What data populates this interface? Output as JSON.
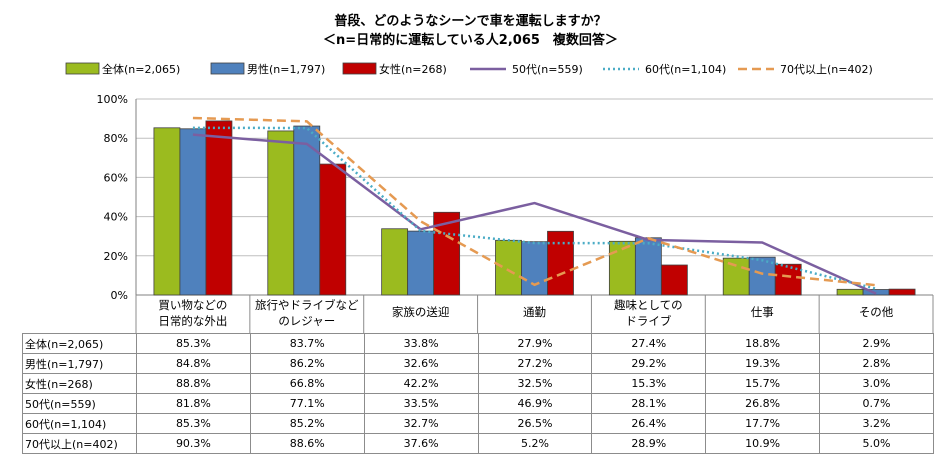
{
  "title": "普段、どのようなシーンで車を運転しますか？",
  "subtitle": "＜n=日常的に運転している人2,065　複数回答＞",
  "chart_data": {
    "type": "bar",
    "title": "普段、どのようなシーンで車を運転しますか？",
    "subtitle": "＜n=日常的に運転している人2,065　複数回答＞",
    "categories": [
      [
        "買い物などの",
        "日常的な外出"
      ],
      [
        "旅行やドライブなど",
        "のレジャー"
      ],
      [
        "家族の送迎"
      ],
      [
        "通勤"
      ],
      [
        "趣味としての",
        "ドライブ"
      ],
      [
        "仕事"
      ],
      [
        "その他"
      ]
    ],
    "ylim": [
      0,
      100
    ],
    "yticks": [
      "0%",
      "20%",
      "40%",
      "60%",
      "80%",
      "100%"
    ],
    "gridlines": true,
    "legend_position": "top",
    "bar_series": [
      {
        "name": "全体(n=2,065)",
        "color": "#9bbb1f",
        "values": [
          85.3,
          83.7,
          33.8,
          27.9,
          27.4,
          18.8,
          2.9
        ],
        "labels": [
          "85.3%",
          "83.7%",
          "33.8%",
          "27.9%",
          "27.4%",
          "18.8%",
          "2.9%"
        ]
      },
      {
        "name": "男性(n=1,797)",
        "color": "#4f81bd",
        "values": [
          84.8,
          86.2,
          32.6,
          27.2,
          29.2,
          19.3,
          2.8
        ],
        "labels": [
          "84.8%",
          "86.2%",
          "32.6%",
          "27.2%",
          "29.2%",
          "19.3%",
          "2.8%"
        ]
      },
      {
        "name": "女性(n=268)",
        "color": "#c00000",
        "values": [
          88.8,
          66.8,
          42.2,
          32.5,
          15.3,
          15.7,
          3.0
        ],
        "labels": [
          "88.8%",
          "66.8%",
          "42.2%",
          "32.5%",
          "15.3%",
          "15.7%",
          "3.0%"
        ]
      }
    ],
    "line_series": [
      {
        "name": "50代(n=559)",
        "color": "#7b5fa0",
        "style": "solid",
        "values": [
          81.8,
          77.1,
          33.5,
          46.9,
          28.1,
          26.8,
          0.7
        ],
        "labels": [
          "81.8%",
          "77.1%",
          "33.5%",
          "46.9%",
          "28.1%",
          "26.8%",
          "0.7%"
        ]
      },
      {
        "name": "60代(n=1,104)",
        "color": "#4bacc6",
        "style": "dotted",
        "values": [
          85.3,
          85.2,
          32.7,
          26.5,
          26.4,
          17.7,
          3.2
        ],
        "labels": [
          "85.3%",
          "85.2%",
          "32.7%",
          "26.5%",
          "26.4%",
          "17.7%",
          "3.2%"
        ]
      },
      {
        "name": "70代以上(n=402)",
        "color": "#e59a52",
        "style": "dashed",
        "values": [
          90.3,
          88.6,
          37.6,
          5.2,
          28.9,
          10.9,
          5.0
        ],
        "labels": [
          "90.3%",
          "88.6%",
          "37.6%",
          "5.2%",
          "28.9%",
          "10.9%",
          "5.0%"
        ]
      }
    ],
    "table_row_labels": [
      "全体(n=2,065)",
      "男性(n=1,797)",
      "女性(n=268)",
      "50代(n=559)",
      "60代(n=1,104)",
      "70代以上(n=402)"
    ]
  }
}
